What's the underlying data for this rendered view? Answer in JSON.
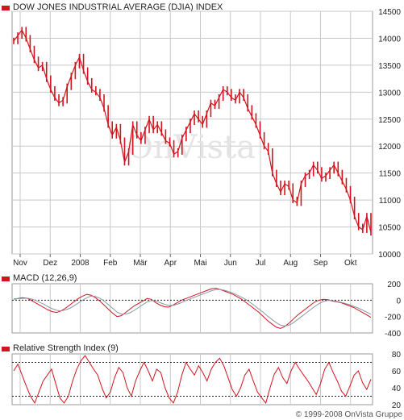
{
  "chart_data": [
    {
      "type": "line",
      "title": "DOW JONES INDUSTRIAL AVERAGE (DJIA) INDEX",
      "ylim": [
        10000,
        14500
      ],
      "yticks": [
        10000,
        10500,
        11000,
        11500,
        12000,
        12500,
        13000,
        13500,
        14000,
        14500
      ],
      "xtick_labels": [
        "Nov",
        "Dez",
        "2008",
        "Feb",
        "Mär",
        "Apr",
        "Mai",
        "Jun",
        "Jul",
        "Aug",
        "Sep",
        "Okt"
      ],
      "grid": true,
      "series": [
        {
          "color": "#d2141e",
          "values": [
            13950,
            14050,
            14150,
            14000,
            13800,
            13600,
            13450,
            13500,
            13250,
            13050,
            12900,
            12800,
            12850,
            13100,
            13300,
            13500,
            13650,
            13400,
            13200,
            13050,
            13000,
            12900,
            12700,
            12400,
            12200,
            12350,
            12100,
            11700,
            11900,
            12400,
            12200,
            12100,
            12300,
            12500,
            12300,
            12400,
            12250,
            12100,
            12050,
            11850,
            11900,
            12150,
            12300,
            12450,
            12600,
            12500,
            12400,
            12600,
            12800,
            12750,
            12900,
            13050,
            13000,
            12900,
            12850,
            13000,
            12900,
            12700,
            12550,
            12400,
            12200,
            12000,
            11900,
            11500,
            11300,
            11150,
            11300,
            11250,
            11000,
            10950,
            11300,
            11450,
            11500,
            11650,
            11550,
            11400,
            11450,
            11550,
            11650,
            11500,
            11350,
            11200,
            11000,
            10700,
            10500,
            10450,
            10700,
            10400
          ]
        }
      ]
    },
    {
      "type": "line",
      "title": "MACD (12,26,9)",
      "ylim": [
        -400,
        200
      ],
      "yticks": [
        -400,
        -200,
        0,
        200
      ],
      "reference_lines": [
        0
      ],
      "series": [
        {
          "color": "#d2141e",
          "values": [
            10,
            20,
            30,
            25,
            0,
            -30,
            -60,
            -90,
            -120,
            -140,
            -150,
            -130,
            -100,
            -60,
            -20,
            20,
            50,
            70,
            60,
            30,
            -10,
            -60,
            -110,
            -160,
            -200,
            -190,
            -150,
            -110,
            -70,
            -40,
            -10,
            20,
            10,
            -30,
            -60,
            -80,
            -85,
            -60,
            -30,
            0,
            20,
            40,
            60,
            80,
            100,
            120,
            140,
            145,
            130,
            110,
            90,
            70,
            40,
            10,
            -30,
            -70,
            -110,
            -150,
            -200,
            -250,
            -290,
            -330,
            -345,
            -320,
            -280,
            -230,
            -180,
            -140,
            -100,
            -60,
            -20,
            0,
            10,
            5,
            -10,
            -20,
            -30,
            -50,
            -70,
            -90,
            -120,
            -150,
            -180,
            -210
          ]
        },
        {
          "color": "#8a98a8",
          "values": [
            15,
            18,
            22,
            24,
            15,
            0,
            -25,
            -50,
            -80,
            -105,
            -125,
            -130,
            -120,
            -100,
            -70,
            -35,
            0,
            30,
            50,
            45,
            25,
            -10,
            -55,
            -100,
            -145,
            -170,
            -170,
            -155,
            -125,
            -90,
            -55,
            -20,
            -5,
            -10,
            -30,
            -50,
            -65,
            -65,
            -50,
            -30,
            -5,
            15,
            35,
            55,
            75,
            95,
            115,
            130,
            130,
            120,
            105,
            85,
            60,
            35,
            5,
            -30,
            -70,
            -110,
            -150,
            -195,
            -235,
            -275,
            -305,
            -315,
            -305,
            -275,
            -235,
            -195,
            -155,
            -115,
            -75,
            -40,
            -15,
            -5,
            -5,
            -15,
            -25,
            -40,
            -55,
            -75,
            -95,
            -120,
            -145,
            -175
          ]
        }
      ]
    },
    {
      "type": "line",
      "title": "Relative Strength Index (9)",
      "ylim": [
        20,
        80
      ],
      "yticks": [
        20,
        40,
        60,
        80
      ],
      "reference_lines": [
        30,
        70
      ],
      "series": [
        {
          "color": "#d2141e",
          "values": [
            60,
            68,
            55,
            42,
            30,
            22,
            35,
            48,
            55,
            62,
            45,
            28,
            22,
            30,
            48,
            62,
            72,
            78,
            70,
            62,
            55,
            40,
            28,
            35,
            52,
            64,
            58,
            40,
            30,
            48,
            60,
            70,
            60,
            48,
            62,
            58,
            40,
            28,
            22,
            35,
            55,
            70,
            62,
            55,
            66,
            58,
            48,
            62,
            70,
            75,
            66,
            52,
            38,
            30,
            40,
            55,
            62,
            48,
            35,
            28,
            22,
            40,
            56,
            64,
            52,
            45,
            60,
            70,
            62,
            55,
            48,
            40,
            32,
            45,
            62,
            70,
            58,
            48,
            36,
            30,
            42,
            55,
            60,
            46,
            38,
            50
          ]
        }
      ]
    }
  ],
  "copyright": "© 1999-2008 OnVista Gruppe",
  "watermark": "OnVista"
}
